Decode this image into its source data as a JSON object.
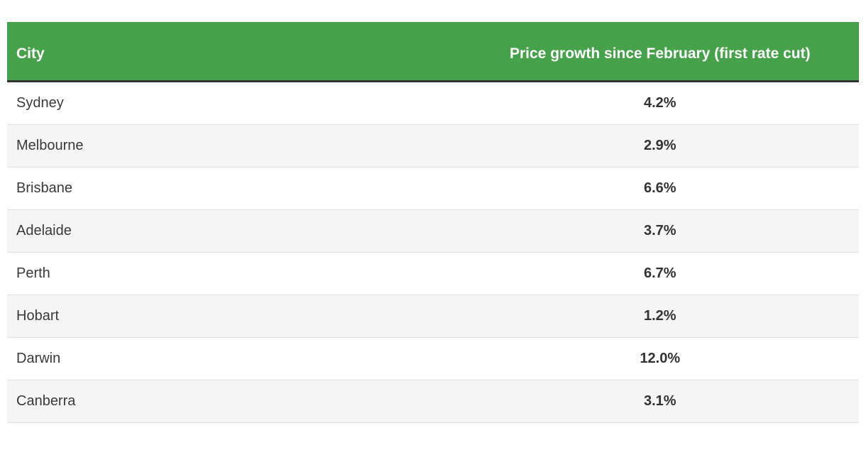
{
  "table": {
    "header": {
      "city_label": "City",
      "value_label": "Price growth since February (first rate cut)"
    },
    "rows": [
      {
        "city": "Sydney",
        "value": "4.2%"
      },
      {
        "city": "Melbourne",
        "value": "2.9%"
      },
      {
        "city": "Brisbane",
        "value": "6.6%"
      },
      {
        "city": "Adelaide",
        "value": "3.7%"
      },
      {
        "city": "Perth",
        "value": "6.7%"
      },
      {
        "city": "Hobart",
        "value": "1.2%"
      },
      {
        "city": "Darwin",
        "value": "12.0%"
      },
      {
        "city": "Canberra",
        "value": "3.1%"
      }
    ],
    "colors": {
      "header_bg": "#45a24a",
      "header_text": "#ffffff",
      "header_separator": "#333333",
      "row_alt_bg": "#f5f5f5",
      "row_border": "#e3e3e3",
      "body_text": "#3a3a3a"
    }
  },
  "chart_data": {
    "type": "table",
    "title": "Price growth since February (first rate cut)",
    "columns": [
      "City",
      "Price growth since February (first rate cut)"
    ],
    "categories": [
      "Sydney",
      "Melbourne",
      "Brisbane",
      "Adelaide",
      "Perth",
      "Hobart",
      "Darwin",
      "Canberra"
    ],
    "values": [
      4.2,
      2.9,
      6.6,
      3.7,
      6.7,
      1.2,
      12.0,
      3.1
    ],
    "unit": "%",
    "layout": {
      "header_style": "green banner, white bold text, dark underline",
      "rows": "zebra striped white / light gray",
      "value_alignment": "center, bold",
      "city_alignment": "left, regular"
    }
  }
}
